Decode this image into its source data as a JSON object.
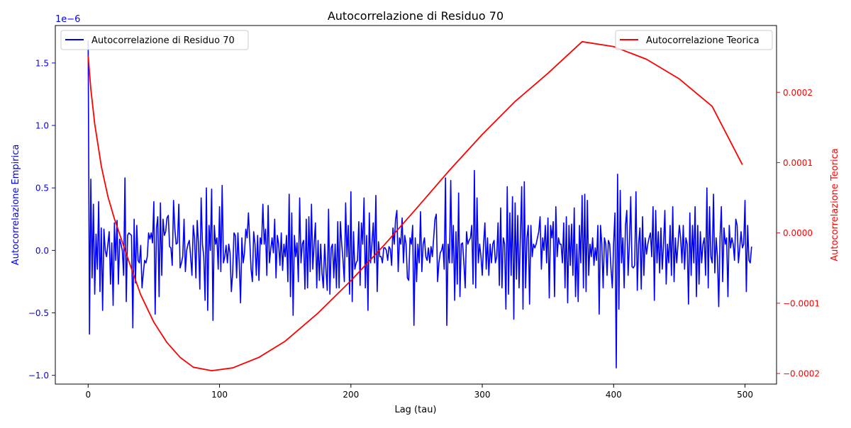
{
  "chart_data": {
    "type": "line",
    "title": "Autocorrelazione di Residuo 70",
    "xlabel": "Lag (tau)",
    "xlim": [
      -25,
      524
    ],
    "x_ticks": [
      0,
      100,
      200,
      300,
      400,
      500
    ],
    "x_tick_labels": [
      "0",
      "100",
      "200",
      "300",
      "400",
      "500"
    ],
    "y_left": {
      "label": "Autocorrelazione Empirica",
      "color": "#0000ff",
      "ylim": [
        -1.07e-06,
        1.8e-06
      ],
      "ticks": [
        -1.0,
        -0.5,
        0.0,
        0.5,
        1.0,
        1.5
      ],
      "tick_labels": [
        "−1.0",
        "−0.5",
        "0.0",
        "0.5",
        "1.0",
        "1.5"
      ],
      "offset_text": "1e−6",
      "scale": 1e-06
    },
    "y_right": {
      "label": "Autocorrelazione Teorica",
      "color": "#ff0000",
      "ylim": [
        -0.000215,
        0.000295
      ],
      "ticks": [
        -0.0002,
        -0.0001,
        0.0,
        0.0001,
        0.0002
      ],
      "tick_labels": [
        "−0.0002",
        "−0.0001",
        "0.0000",
        "0.0001",
        "0.0002"
      ]
    },
    "series": [
      {
        "name": "Autocorrelazione di Residuo 70",
        "axis": "left",
        "color": "#0000ff",
        "x_start": 0,
        "x_step": 1,
        "values_e6": [
          1.68,
          -0.67,
          0.57,
          -0.22,
          0.37,
          -0.35,
          0.13,
          -0.15,
          0.39,
          -0.33,
          0.18,
          -0.48,
          0.17,
          0.0,
          -0.05,
          0.05,
          0.15,
          -0.27,
          0.06,
          -0.44,
          0.22,
          -0.08,
          0.24,
          -0.27,
          0.09,
          0.05,
          0.0,
          -0.2,
          0.58,
          -0.41,
          0.12,
          0.14,
          0.13,
          0.12,
          -0.62,
          0.25,
          -0.26,
          0.2,
          -0.08,
          -0.1,
          0.04,
          -0.3,
          -0.18,
          -0.08,
          -0.1,
          -0.05,
          0.14,
          0.09,
          0.14,
          0.06,
          0.39,
          -0.51,
          0.18,
          0.27,
          -0.37,
          0.38,
          -0.2,
          0.25,
          0.12,
          0.15,
          0.26,
          0.28,
          0.03,
          0.02,
          -0.12,
          0.4,
          0.17,
          0.05,
          0.06,
          0.37,
          -0.14,
          -0.1,
          -0.05,
          0.25,
          -0.17,
          0.0,
          0.05,
          0.08,
          -0.05,
          -0.2,
          0.2,
          0.1,
          -0.22,
          0.24,
          0.05,
          -0.31,
          0.42,
          0.05,
          -0.05,
          -0.4,
          0.5,
          -0.48,
          0.2,
          0.0,
          0.49,
          -0.56,
          0.2,
          0.05,
          0.1,
          -0.15,
          0.35,
          -0.17,
          0.52,
          -0.1,
          -0.05,
          0.04,
          -0.1,
          0.05,
          -0.02,
          -0.33,
          -0.18,
          0.14,
          0.12,
          -0.22,
          0.14,
          -0.1,
          -0.42,
          0.1,
          -0.1,
          -0.02,
          0.17,
          0.1,
          0.3,
          0.08,
          -0.15,
          -0.25,
          0.15,
          0.05,
          -0.2,
          0.12,
          -0.24,
          0.1,
          0.05,
          0.37,
          0.05,
          0.17,
          -0.2,
          0.36,
          -0.1,
          0.01,
          0.1,
          -0.02,
          0.25,
          -0.22,
          0.12,
          0.05,
          -0.12,
          0.14,
          -0.16,
          0.05,
          -0.05,
          0.12,
          -0.25,
          0.45,
          -0.37,
          0.3,
          -0.52,
          0.12,
          -0.05,
          0.06,
          -0.25,
          0.42,
          -0.1,
          0.05,
          0.08,
          -0.31,
          0.25,
          -0.3,
          0.27,
          -0.17,
          0.37,
          -0.15,
          0.05,
          0.22,
          -0.3,
          0.08,
          -0.24,
          0.05,
          -0.18,
          -0.3,
          0.05,
          -0.15,
          -0.32,
          0.33,
          -0.35,
          0.02,
          0.05,
          -0.22,
          0.05,
          -0.3,
          0.23,
          -0.3,
          0.23,
          0.05,
          -0.08,
          -0.25,
          0.38,
          -0.05,
          0.2,
          -0.35,
          0.47,
          -0.41,
          0.15,
          -0.15,
          -0.1,
          -0.08,
          0.23,
          -0.28,
          0.22,
          0.05,
          0.42,
          -0.3,
          0.12,
          -0.48,
          0.3,
          -0.1,
          0.05,
          0.22,
          -0.1,
          0.44,
          -0.33,
          0.07,
          -0.05,
          -0.05,
          -0.1,
          0.02,
          0.02,
          0.0,
          -0.08,
          0.03,
          0.01,
          -0.12,
          0.18,
          0.05,
          0.25,
          0.32,
          -0.17,
          0.1,
          0.05,
          0.26,
          -0.1,
          0.12,
          0.05,
          -0.22,
          -0.24,
          0.1,
          0.05,
          0.2,
          -0.6,
          0.1,
          -0.25,
          0.05,
          -0.1,
          0.31,
          -0.17,
          0.05,
          0.1,
          -0.05,
          -0.08,
          0.02,
          -0.1,
          0.03,
          -0.05,
          0.1,
          0.25,
          0.29,
          -0.25,
          -0.1,
          -0.02,
          0.0,
          0.05,
          -0.15,
          0.58,
          -0.6,
          0.05,
          -0.1,
          0.56,
          -0.1,
          0.2,
          -0.4,
          0.15,
          -0.27,
          0.46,
          -0.37,
          0.05,
          0.06,
          -0.1,
          -0.3,
          0.15,
          0.05,
          0.08,
          0.1,
          0.2,
          -0.27,
          0.64,
          -0.3,
          0.42,
          -0.1,
          0.05,
          -0.05,
          -0.2,
          0.05,
          0.22,
          -0.15,
          0.1,
          -0.2,
          0.05,
          -0.1,
          0.05,
          0.08,
          -0.1,
          -0.05,
          0.22,
          -0.28,
          0.34,
          -0.3,
          0.1,
          0.05,
          -0.47,
          0.51,
          -0.35,
          0.3,
          -0.2,
          0.43,
          -0.55,
          0.38,
          -0.23,
          0.28,
          -0.3,
          0.1,
          0.51,
          -0.47,
          0.55,
          -0.3,
          0.1,
          0.2,
          -0.43,
          0.2,
          -0.05,
          0.05,
          0.02,
          0.05,
          0.1,
          0.15,
          0.27,
          -0.15,
          0.1,
          0.0,
          0.2,
          -0.1,
          0.26,
          -0.38,
          0.2,
          0.1,
          0.23,
          -0.37,
          0.35,
          -0.05,
          0.1,
          0.05,
          0.05,
          -0.1,
          0.22,
          -0.3,
          0.27,
          -0.42,
          0.2,
          -0.12,
          0.21,
          -0.2,
          0.34,
          -0.37,
          0.05,
          -0.41,
          0.2,
          -0.1,
          0.44,
          -0.3,
          0.45,
          -0.33,
          0.4,
          -0.2,
          0.05,
          -0.05,
          0.1,
          -0.12,
          0.02,
          -0.08,
          0.2,
          -0.51,
          0.2,
          0.05,
          -0.3,
          0.1,
          0.05,
          -0.2,
          0.08,
          0.05,
          -0.15,
          -0.3,
          0.06,
          0.3,
          -0.94,
          0.61,
          -0.47,
          0.48,
          -0.1,
          0.1,
          -0.3,
          0.2,
          0.32,
          -0.2,
          0.05,
          0.43,
          -0.13,
          -0.14,
          -0.12,
          0.47,
          -0.32,
          0.05,
          0.18,
          -0.31,
          0.27,
          -0.2,
          0.1,
          -0.03,
          0.05,
          0.1,
          0.14,
          -0.05,
          0.35,
          -0.4,
          0.32,
          -0.1,
          0.15,
          -0.18,
          0.18,
          -0.15,
          0.05,
          0.32,
          -0.27,
          0.05,
          -0.1,
          0.2,
          -0.2,
          0.35,
          -0.25,
          0.1,
          -0.1,
          0.05,
          0.2,
          0.1,
          -0.1,
          0.2,
          -0.15,
          0.1,
          0.05,
          -0.43,
          0.3,
          -0.2,
          0.2,
          -0.1,
          0.35,
          -0.37,
          0.2,
          -0.27,
          0.15,
          -0.1,
          0.05,
          0.1,
          -0.2,
          0.5,
          -0.3,
          0.35,
          -0.05,
          -0.1,
          0.45,
          -0.18,
          0.1,
          -0.05,
          -0.45,
          0.1,
          0.35,
          -0.25,
          0.18,
          0.05,
          0.1,
          -0.37,
          0.2,
          0.02,
          0.1,
          0.05,
          -0.08,
          0.25,
          0.2,
          -0.1,
          0.02,
          0.15,
          0.02,
          0.05,
          0.4,
          -0.33,
          0.2,
          -0.08,
          -0.1,
          0.03
        ]
      },
      {
        "name": "Autocorrelazione Teorica",
        "axis": "right",
        "color": "#ff0000",
        "x": [
          0,
          2,
          5,
          10,
          15,
          20,
          30,
          40,
          50,
          60,
          70,
          80,
          94,
          110,
          130,
          150,
          175,
          200,
          225,
          250,
          275,
          300,
          325,
          350,
          376,
          400,
          425,
          450,
          475,
          498
        ],
        "values": [
          0.000252,
          0.000205,
          0.000155,
          9.5e-05,
          5.2e-05,
          2e-05,
          -3.5e-05,
          -8.8e-05,
          -0.000127,
          -0.000156,
          -0.000177,
          -0.000191,
          -0.000196,
          -0.000192,
          -0.000177,
          -0.000154,
          -0.000114,
          -6.8e-05,
          -1.8e-05,
          3.5e-05,
          8.9e-05,
          0.00014,
          0.000187,
          0.000227,
          0.000272,
          0.000265,
          0.000247,
          0.000219,
          0.00018,
          9.7e-05
        ]
      }
    ],
    "legends": {
      "left": {
        "placement": "upper left",
        "label": "Autocorrelazione di Residuo 70",
        "color": "#0000ff"
      },
      "right": {
        "placement": "upper right",
        "label": "Autocorrelazione Teorica",
        "color": "#ff0000"
      }
    },
    "grid": false
  }
}
